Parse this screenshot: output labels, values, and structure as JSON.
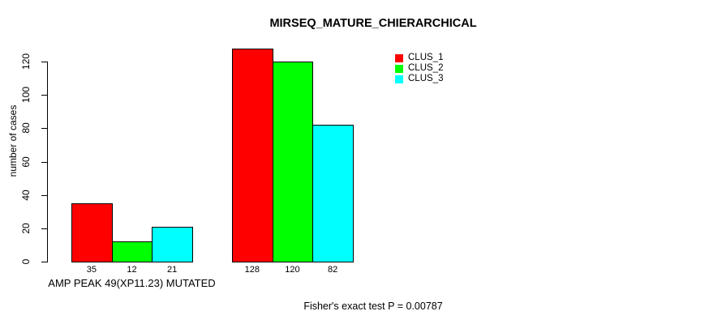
{
  "chart_data": {
    "type": "bar",
    "title": "MIRSEQ_MATURE_CHIERARCHICAL",
    "ylabel": "number of cases",
    "xlabel": "",
    "ylim": [
      0,
      120
    ],
    "yticks": [
      0,
      20,
      40,
      60,
      80,
      100,
      120
    ],
    "grid": false,
    "legend_position": "top-right",
    "series": [
      {
        "name": "CLUS_1",
        "color": "#FF0000"
      },
      {
        "name": "CLUS_2",
        "color": "#00FF00"
      },
      {
        "name": "CLUS_3",
        "color": "#00FFFF"
      }
    ],
    "groups": [
      {
        "label": "AMP PEAK 49(XP11.23) MUTATED",
        "values": [
          35,
          12,
          21
        ]
      },
      {
        "label": "",
        "values": [
          128,
          120,
          82
        ]
      }
    ],
    "bar_value_labels": [
      [
        "35",
        "12",
        "21"
      ],
      [
        "128",
        "120",
        "82"
      ]
    ],
    "note": "Fisher's exact test P = 0.00787",
    "bar_border_color": "#000000"
  }
}
